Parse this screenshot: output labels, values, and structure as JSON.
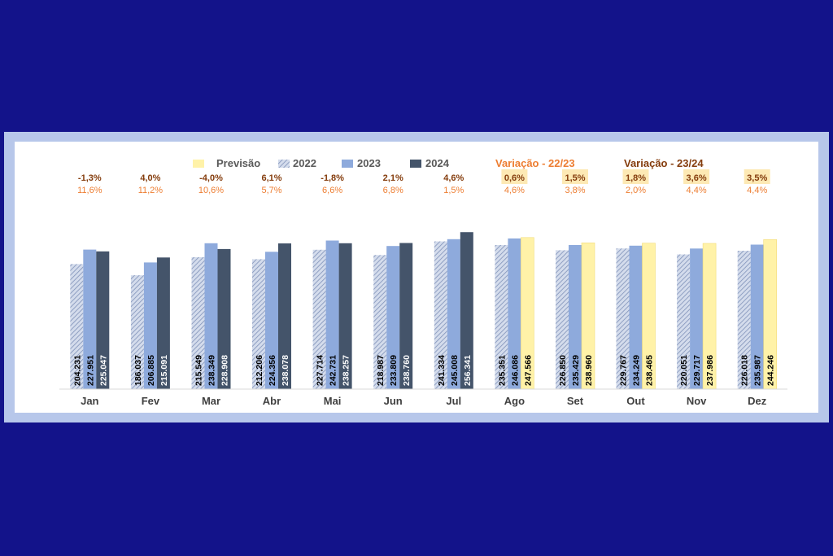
{
  "colors": {
    "background": "#13138a",
    "frame": "#b7c7ea",
    "series_2022": "#b3bfd8",
    "series_2023": "#8eaadc",
    "series_2024": "#44546a",
    "forecast": "#fff2a8",
    "variation_22_23": "#ed7d31",
    "variation_23_24": "#843c0c",
    "forecast_label_bg": "#fde9b4"
  },
  "chart_data": {
    "type": "bar",
    "categories": [
      "Jan",
      "Fev",
      "Mar",
      "Abr",
      "Mai",
      "Jun",
      "Jul",
      "Ago",
      "Set",
      "Out",
      "Nov",
      "Dez"
    ],
    "series": [
      {
        "name": "2022",
        "values": [
          204231,
          186037,
          215549,
          212206,
          227714,
          218987,
          241334,
          235351,
          226850,
          229767,
          220051,
          226018
        ],
        "labels": [
          "204.231",
          "186.037",
          "215.549",
          "212.206",
          "227.714",
          "218.987",
          "241.334",
          "235.351",
          "226.850",
          "229.767",
          "220.051",
          "226.018"
        ]
      },
      {
        "name": "2023",
        "values": [
          227951,
          206885,
          238349,
          224356,
          242731,
          233809,
          245008,
          246086,
          235429,
          234249,
          229717,
          235987
        ],
        "labels": [
          "227.951",
          "206.885",
          "238.349",
          "224.356",
          "242.731",
          "233.809",
          "245.008",
          "246.086",
          "235.429",
          "234.249",
          "229.717",
          "235.987"
        ]
      },
      {
        "name": "2024",
        "values": [
          225047,
          215091,
          228908,
          238078,
          238257,
          238760,
          256341,
          247566,
          238960,
          238465,
          237986,
          244246
        ],
        "labels": [
          "225.047",
          "215.091",
          "228.908",
          "238.078",
          "238.257",
          "238.760",
          "256.341",
          "247.566",
          "238.960",
          "238.465",
          "237.986",
          "244.246"
        ],
        "forecast_from": "Ago"
      }
    ],
    "variation_23_24": [
      "-1,3%",
      "4,0%",
      "-4,0%",
      "6,1%",
      "-1,8%",
      "2,1%",
      "4,6%",
      "0,6%",
      "1,5%",
      "1,8%",
      "3,6%",
      "3,5%"
    ],
    "variation_22_23": [
      "11,6%",
      "11,2%",
      "10,6%",
      "5,7%",
      "6,6%",
      "6,8%",
      "1,5%",
      "4,6%",
      "3,8%",
      "2,0%",
      "4,4%",
      "4,4%"
    ],
    "legend": {
      "forecast": "Previsão",
      "s2022": "2022",
      "s2023": "2023",
      "s2024": "2024",
      "var_22_23": "Variação - 22/23",
      "var_23_24": "Variação - 23/24",
      "position": "top"
    },
    "ylim": [
      0,
      260000
    ],
    "grid": false
  }
}
